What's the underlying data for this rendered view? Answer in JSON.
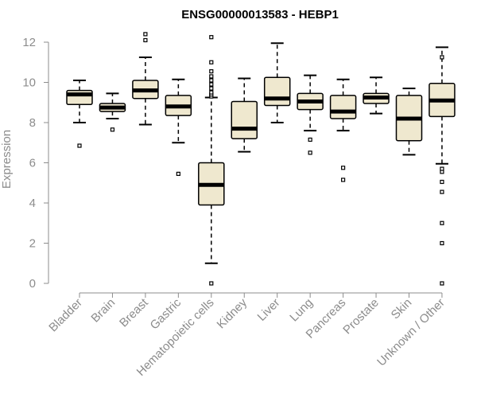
{
  "chart_data": {
    "type": "box",
    "title": "ENSG00000013583 - HEBP1",
    "xlabel": "",
    "ylabel": "Expression",
    "ylim": [
      0,
      12
    ],
    "yticks": [
      0,
      2,
      4,
      6,
      8,
      10,
      12
    ],
    "grid": false,
    "colors": {
      "box_fill": "#efe8cf",
      "box_stroke": "#000000",
      "axis": "#8c8c8c"
    },
    "categories": [
      "Bladder",
      "Brain",
      "Breast",
      "Gastric",
      "Hematopoietic cells",
      "Kidney",
      "Liver",
      "Lung",
      "Pancreas",
      "Prostate",
      "Skin",
      "Unknown / Other"
    ],
    "boxes": [
      {
        "label": "Bladder",
        "whisker_low": 8.0,
        "q1": 8.9,
        "median": 9.4,
        "q3": 9.6,
        "whisker_high": 10.1,
        "outliers": [
          6.85
        ]
      },
      {
        "label": "Brain",
        "whisker_low": 8.2,
        "q1": 8.55,
        "median": 8.75,
        "q3": 8.95,
        "whisker_high": 9.45,
        "outliers": [
          7.65
        ]
      },
      {
        "label": "Breast",
        "whisker_low": 7.9,
        "q1": 9.2,
        "median": 9.6,
        "q3": 10.1,
        "whisker_high": 11.25,
        "outliers": [
          12.1,
          12.4
        ]
      },
      {
        "label": "Gastric",
        "whisker_low": 7.0,
        "q1": 8.35,
        "median": 8.8,
        "q3": 9.35,
        "whisker_high": 10.15,
        "outliers": [
          5.45
        ]
      },
      {
        "label": "Hematopoietic cells",
        "whisker_low": 1.0,
        "q1": 3.9,
        "median": 4.9,
        "q3": 6.0,
        "whisker_high": 9.25,
        "outliers": [
          0.0,
          9.3,
          9.4,
          9.5,
          9.7,
          9.9,
          10.1,
          10.3,
          10.55,
          11.0,
          12.25
        ]
      },
      {
        "label": "Kidney",
        "whisker_low": 6.55,
        "q1": 7.2,
        "median": 7.7,
        "q3": 9.05,
        "whisker_high": 10.2,
        "outliers": []
      },
      {
        "label": "Liver",
        "whisker_low": 8.0,
        "q1": 8.85,
        "median": 9.2,
        "q3": 10.25,
        "whisker_high": 11.95,
        "outliers": []
      },
      {
        "label": "Lung",
        "whisker_low": 7.6,
        "q1": 8.65,
        "median": 9.05,
        "q3": 9.45,
        "whisker_high": 10.35,
        "outliers": [
          6.5,
          7.15
        ]
      },
      {
        "label": "Pancreas",
        "whisker_low": 7.6,
        "q1": 8.2,
        "median": 8.55,
        "q3": 9.35,
        "whisker_high": 10.15,
        "outliers": [
          5.15,
          5.75
        ]
      },
      {
        "label": "Prostate",
        "whisker_low": 8.45,
        "q1": 8.95,
        "median": 9.25,
        "q3": 9.45,
        "whisker_high": 10.25,
        "outliers": []
      },
      {
        "label": "Skin",
        "whisker_low": 6.4,
        "q1": 7.1,
        "median": 8.2,
        "q3": 9.35,
        "whisker_high": 9.7,
        "outliers": []
      },
      {
        "label": "Unknown / Other",
        "whisker_low": 5.95,
        "q1": 8.3,
        "median": 9.1,
        "q3": 9.95,
        "whisker_high": 11.75,
        "outliers": [
          0.0,
          2.0,
          3.0,
          4.55,
          5.05,
          5.55,
          5.7,
          11.25
        ]
      }
    ]
  }
}
